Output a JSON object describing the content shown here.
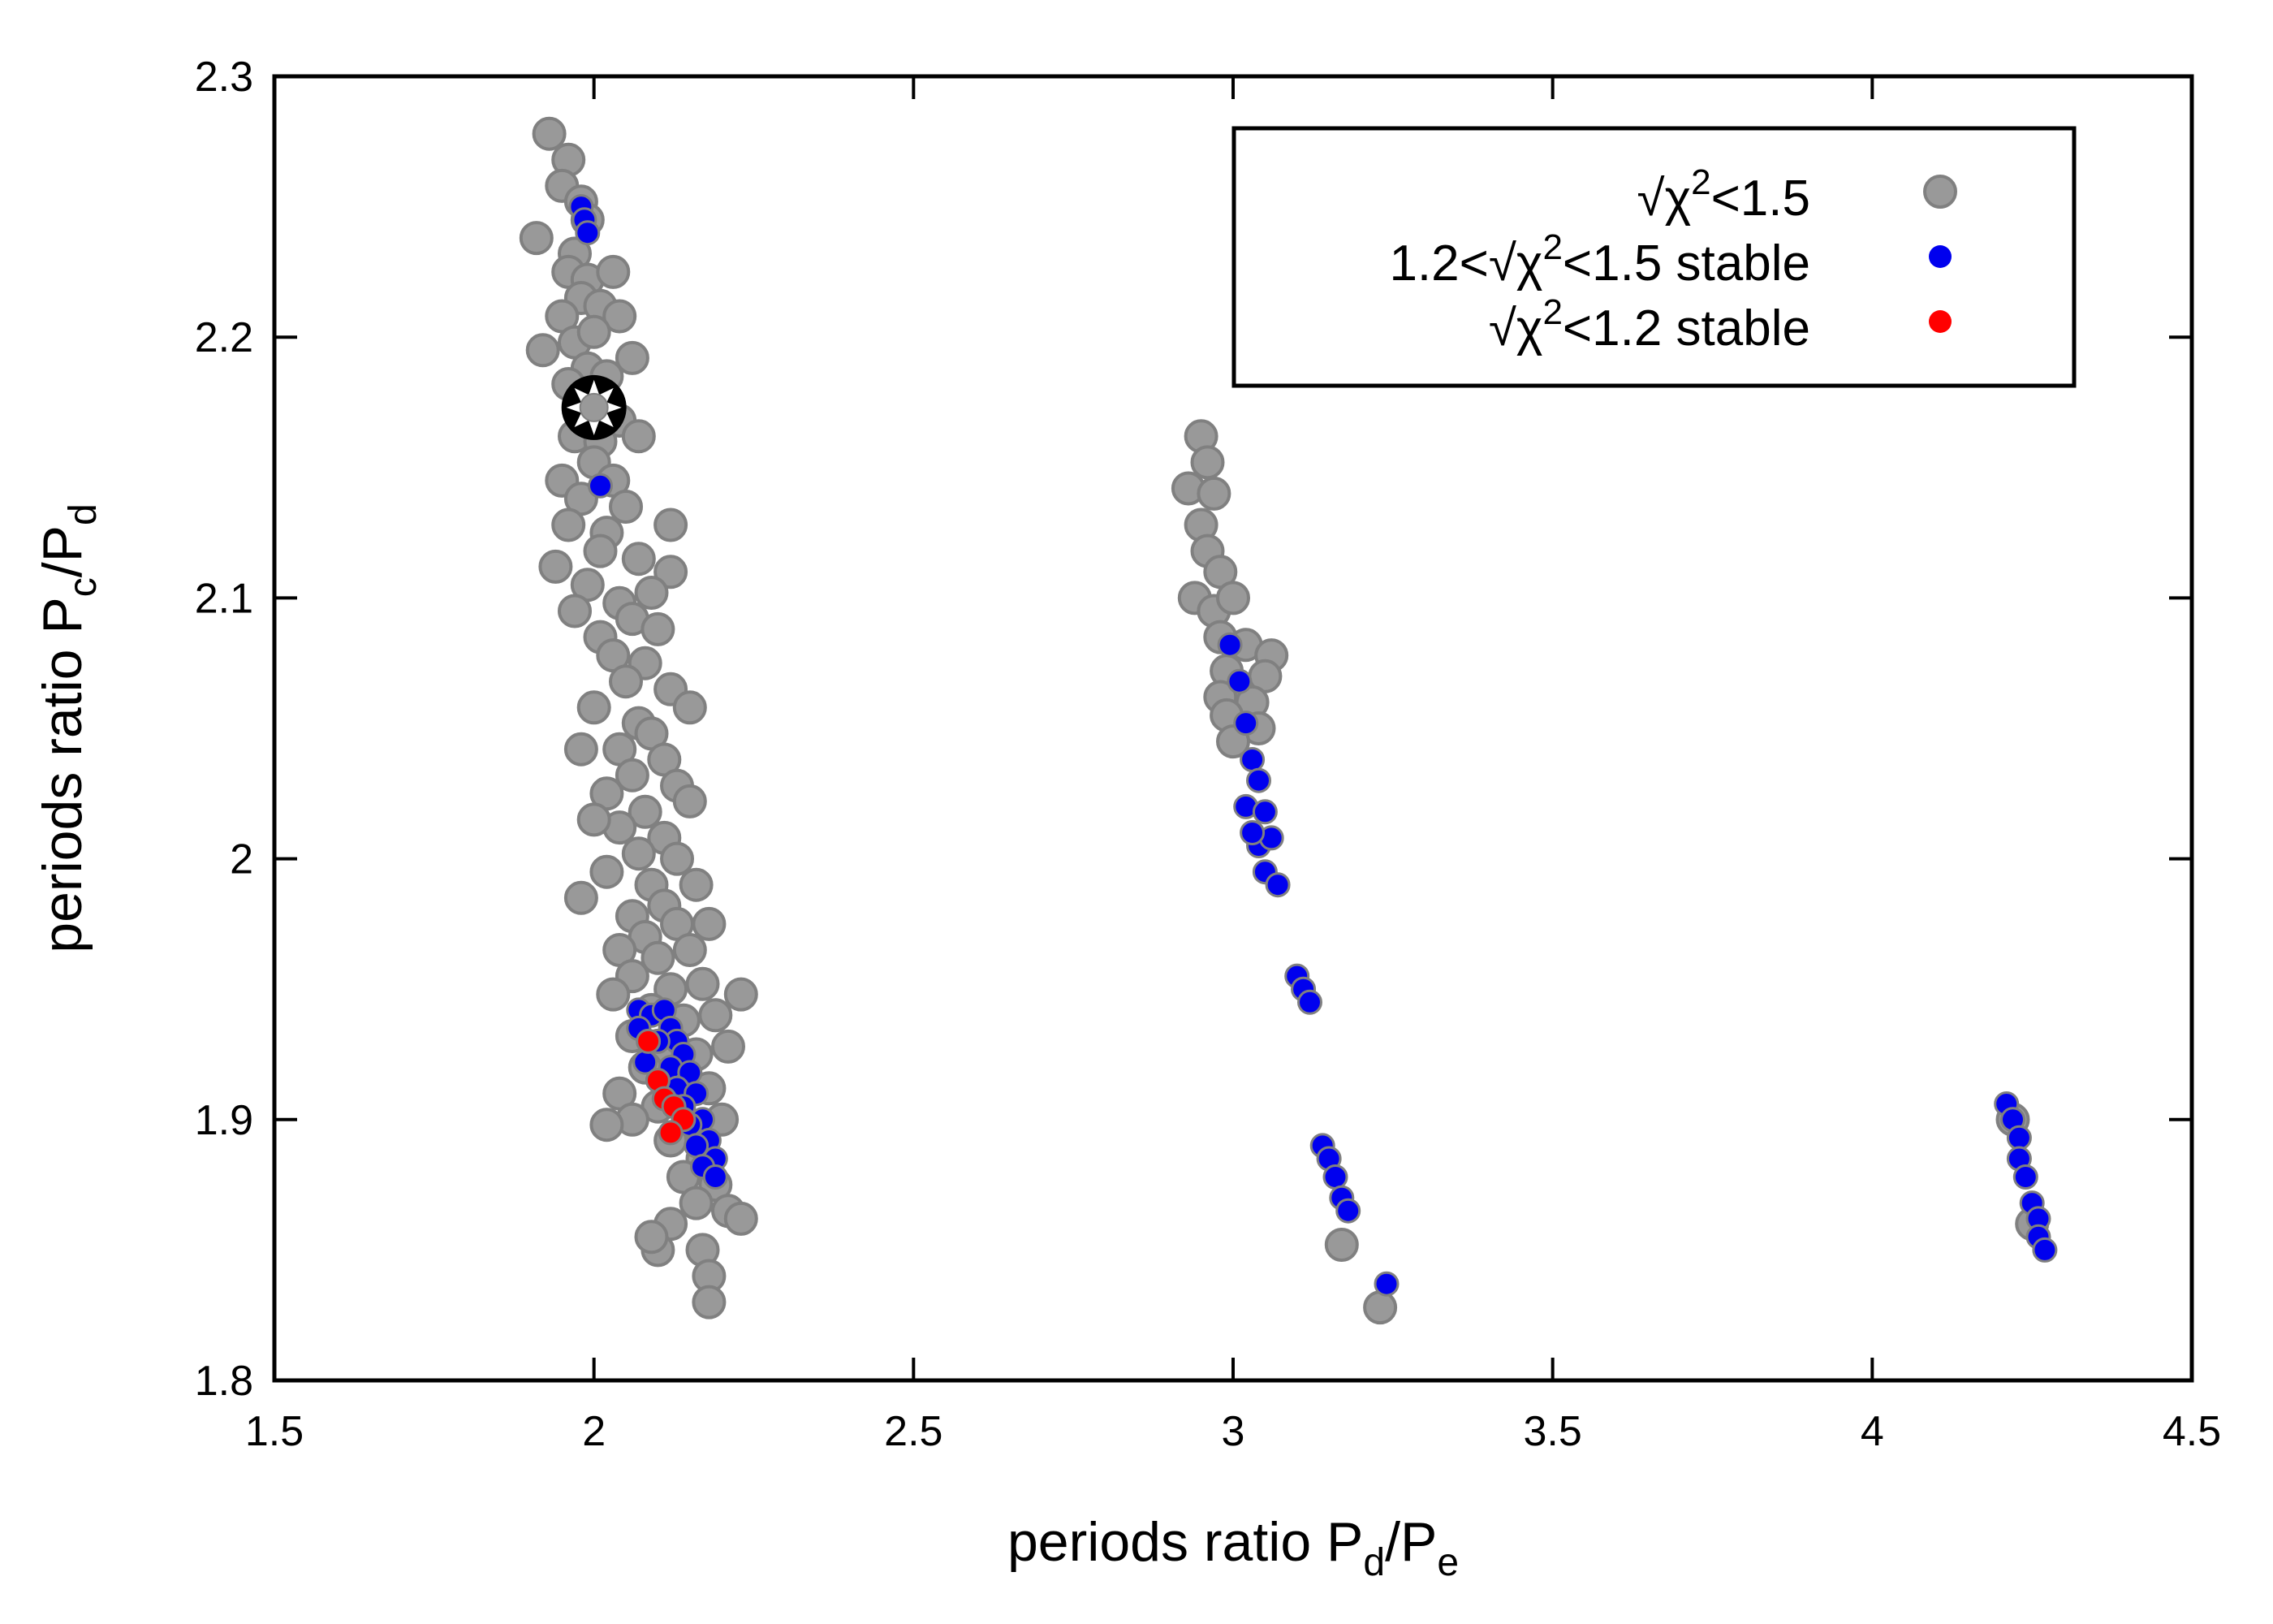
{
  "chart_data": {
    "type": "scatter",
    "xlabel": "periods ratio P_d/P_e",
    "ylabel": "periods ratio P_c/P_d",
    "xlabel_parts": {
      "main": "periods ratio P",
      "sub1": "d",
      "slash": "/P",
      "sub2": "e"
    },
    "ylabel_parts": {
      "main": "periods ratio P",
      "sub1": "c",
      "slash": "/P",
      "sub2": "d"
    },
    "xlim": [
      1.5,
      4.5
    ],
    "ylim": [
      1.8,
      2.3
    ],
    "xticks": [
      1.5,
      2,
      2.5,
      3,
      3.5,
      4,
      4.5
    ],
    "xtick_labels": [
      "1.5",
      "2",
      "2.5",
      "3",
      "3.5",
      "4",
      "4.5"
    ],
    "yticks": [
      1.8,
      1.9,
      2.0,
      2.1,
      2.2,
      2.3
    ],
    "ytick_labels": [
      "1.8",
      "1.9",
      "2",
      "2.1",
      "2.2",
      "2.3"
    ],
    "grid": false,
    "legend_position": "top-right",
    "legend": [
      {
        "id": "gray",
        "sqrt": "√",
        "chi": "χ",
        "sup": "2",
        "rest": "<1.5",
        "prefix": ""
      },
      {
        "id": "blue",
        "sqrt": "√",
        "chi": "χ",
        "sup": "2",
        "rest": "<1.5 stable",
        "prefix": "1.2<"
      },
      {
        "id": "red",
        "sqrt": "√",
        "chi": "χ",
        "sup": "2",
        "rest": "<1.2 stable",
        "prefix": ""
      }
    ],
    "marker_best_fit": {
      "x": 2.0,
      "y": 2.173
    },
    "series": [
      {
        "name": "√χ²<1.5",
        "color": "#999999",
        "stroke": "#808080",
        "points": [
          [
            1.93,
            2.278
          ],
          [
            1.96,
            2.268
          ],
          [
            1.95,
            2.258
          ],
          [
            1.98,
            2.252
          ],
          [
            1.91,
            2.238
          ],
          [
            1.99,
            2.245
          ],
          [
            1.97,
            2.232
          ],
          [
            1.96,
            2.225
          ],
          [
            1.99,
            2.222
          ],
          [
            2.03,
            2.225
          ],
          [
            1.98,
            2.215
          ],
          [
            2.01,
            2.212
          ],
          [
            2.04,
            2.208
          ],
          [
            1.95,
            2.208
          ],
          [
            1.97,
            2.198
          ],
          [
            2.0,
            2.202
          ],
          [
            1.92,
            2.195
          ],
          [
            2.06,
            2.192
          ],
          [
            1.99,
            2.188
          ],
          [
            2.02,
            2.185
          ],
          [
            1.96,
            2.182
          ],
          [
            1.98,
            2.172
          ],
          [
            2.04,
            2.168
          ],
          [
            1.97,
            2.162
          ],
          [
            2.01,
            2.16
          ],
          [
            2.07,
            2.162
          ],
          [
            2.0,
            2.152
          ],
          [
            2.03,
            2.145
          ],
          [
            1.95,
            2.145
          ],
          [
            1.98,
            2.138
          ],
          [
            2.05,
            2.135
          ],
          [
            1.96,
            2.128
          ],
          [
            2.02,
            2.125
          ],
          [
            2.12,
            2.128
          ],
          [
            2.01,
            2.118
          ],
          [
            1.94,
            2.112
          ],
          [
            2.07,
            2.115
          ],
          [
            2.12,
            2.11
          ],
          [
            1.99,
            2.105
          ],
          [
            2.04,
            2.098
          ],
          [
            2.09,
            2.102
          ],
          [
            1.97,
            2.095
          ],
          [
            2.06,
            2.092
          ],
          [
            2.01,
            2.085
          ],
          [
            2.1,
            2.088
          ],
          [
            2.03,
            2.078
          ],
          [
            2.08,
            2.075
          ],
          [
            2.05,
            2.068
          ],
          [
            2.12,
            2.065
          ],
          [
            2.0,
            2.058
          ],
          [
            2.07,
            2.052
          ],
          [
            2.15,
            2.058
          ],
          [
            2.09,
            2.048
          ],
          [
            2.04,
            2.042
          ],
          [
            1.98,
            2.042
          ],
          [
            2.11,
            2.038
          ],
          [
            2.06,
            2.032
          ],
          [
            2.13,
            2.028
          ],
          [
            2.02,
            2.025
          ],
          [
            2.08,
            2.018
          ],
          [
            2.15,
            2.022
          ],
          [
            2.04,
            2.012
          ],
          [
            2.11,
            2.008
          ],
          [
            2.0,
            2.015
          ],
          [
            2.07,
            2.002
          ],
          [
            2.13,
            2.0
          ],
          [
            2.02,
            1.995
          ],
          [
            2.09,
            1.99
          ],
          [
            1.98,
            1.985
          ],
          [
            2.16,
            1.99
          ],
          [
            2.11,
            1.982
          ],
          [
            2.06,
            1.978
          ],
          [
            2.13,
            1.975
          ],
          [
            2.18,
            1.975
          ],
          [
            2.08,
            1.97
          ],
          [
            2.04,
            1.965
          ],
          [
            2.1,
            1.962
          ],
          [
            2.15,
            1.965
          ],
          [
            2.06,
            1.955
          ],
          [
            2.12,
            1.95
          ],
          [
            2.17,
            1.952
          ],
          [
            2.03,
            1.948
          ],
          [
            2.09,
            1.942
          ],
          [
            2.14,
            1.938
          ],
          [
            2.19,
            1.94
          ],
          [
            2.06,
            1.932
          ],
          [
            2.11,
            1.928
          ],
          [
            2.16,
            1.925
          ],
          [
            2.21,
            1.928
          ],
          [
            2.08,
            1.92
          ],
          [
            2.13,
            1.915
          ],
          [
            2.04,
            1.91
          ],
          [
            2.18,
            1.912
          ],
          [
            2.1,
            1.905
          ],
          [
            2.06,
            1.9
          ],
          [
            2.15,
            1.898
          ],
          [
            2.2,
            1.9
          ],
          [
            2.12,
            1.892
          ],
          [
            2.17,
            1.885
          ],
          [
            2.14,
            1.878
          ],
          [
            2.19,
            1.875
          ],
          [
            2.16,
            1.868
          ],
          [
            2.21,
            1.865
          ],
          [
            2.12,
            1.86
          ],
          [
            2.23,
            1.862
          ],
          [
            2.1,
            1.85
          ],
          [
            2.17,
            1.85
          ],
          [
            2.09,
            1.855
          ],
          [
            2.18,
            1.84
          ],
          [
            2.18,
            1.83
          ],
          [
            2.23,
            1.948
          ],
          [
            2.02,
            1.898
          ],
          [
            2.95,
            2.162
          ],
          [
            2.93,
            2.142
          ],
          [
            2.96,
            2.152
          ],
          [
            2.97,
            2.14
          ],
          [
            2.95,
            2.128
          ],
          [
            2.96,
            2.118
          ],
          [
            2.98,
            2.11
          ],
          [
            2.94,
            2.1
          ],
          [
            2.97,
            2.095
          ],
          [
            3.0,
            2.1
          ],
          [
            2.98,
            2.085
          ],
          [
            3.02,
            2.082
          ],
          [
            3.06,
            2.078
          ],
          [
            2.99,
            2.072
          ],
          [
            3.05,
            2.07
          ],
          [
            2.98,
            2.062
          ],
          [
            3.03,
            2.06
          ],
          [
            2.99,
            2.055
          ],
          [
            3.04,
            2.05
          ],
          [
            3.0,
            2.045
          ],
          [
            3.17,
            1.852
          ],
          [
            3.23,
            1.828
          ],
          [
            4.22,
            1.9
          ],
          [
            4.25,
            1.86
          ]
        ]
      },
      {
        "name": "1.2<√χ²<1.5 stable",
        "color": "#0000ee",
        "stroke": "#808080",
        "points": [
          [
            1.98,
            2.25
          ],
          [
            1.985,
            2.245
          ],
          [
            1.99,
            2.24
          ],
          [
            2.01,
            2.143
          ],
          [
            2.07,
            1.942
          ],
          [
            2.09,
            1.94
          ],
          [
            2.11,
            1.942
          ],
          [
            2.12,
            1.935
          ],
          [
            2.13,
            1.93
          ],
          [
            2.1,
            1.93
          ],
          [
            2.14,
            1.925
          ],
          [
            2.12,
            1.92
          ],
          [
            2.15,
            1.918
          ],
          [
            2.08,
            1.922
          ],
          [
            2.13,
            1.912
          ],
          [
            2.16,
            1.91
          ],
          [
            2.11,
            1.908
          ],
          [
            2.14,
            1.905
          ],
          [
            2.17,
            1.9
          ],
          [
            2.15,
            1.898
          ],
          [
            2.18,
            1.892
          ],
          [
            2.16,
            1.89
          ],
          [
            2.19,
            1.885
          ],
          [
            2.17,
            1.882
          ],
          [
            2.19,
            1.878
          ],
          [
            2.07,
            1.935
          ],
          [
            2.1,
            1.915
          ],
          [
            2.995,
            2.082
          ],
          [
            3.01,
            2.068
          ],
          [
            3.02,
            2.052
          ],
          [
            3.03,
            2.038
          ],
          [
            3.04,
            2.03
          ],
          [
            3.02,
            2.02
          ],
          [
            3.05,
            2.018
          ],
          [
            3.04,
            2.005
          ],
          [
            3.06,
            2.008
          ],
          [
            3.05,
            1.995
          ],
          [
            3.07,
            1.99
          ],
          [
            3.03,
            2.01
          ],
          [
            3.1,
            1.955
          ],
          [
            3.11,
            1.95
          ],
          [
            3.12,
            1.945
          ],
          [
            3.14,
            1.89
          ],
          [
            3.15,
            1.885
          ],
          [
            3.16,
            1.878
          ],
          [
            3.17,
            1.87
          ],
          [
            3.18,
            1.865
          ],
          [
            3.24,
            1.837
          ],
          [
            4.21,
            1.906
          ],
          [
            4.22,
            1.9
          ],
          [
            4.23,
            1.893
          ],
          [
            4.23,
            1.885
          ],
          [
            4.24,
            1.878
          ],
          [
            4.25,
            1.868
          ],
          [
            4.26,
            1.862
          ],
          [
            4.26,
            1.855
          ],
          [
            4.27,
            1.85
          ]
        ]
      },
      {
        "name": "√χ²<1.2 stable",
        "color": "#ff0000",
        "stroke": "#808080",
        "points": [
          [
            2.085,
            1.93
          ],
          [
            2.1,
            1.915
          ],
          [
            2.11,
            1.908
          ],
          [
            2.125,
            1.905
          ],
          [
            2.14,
            1.9
          ],
          [
            2.12,
            1.895
          ]
        ]
      }
    ]
  }
}
